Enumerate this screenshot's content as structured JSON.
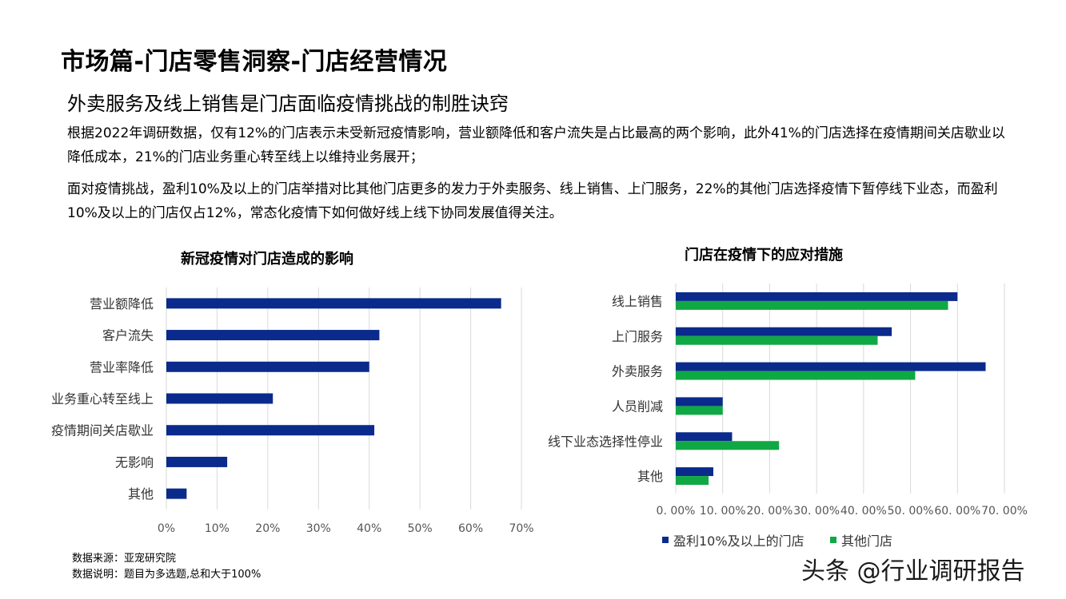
{
  "header": {
    "title": "市场篇-门店零售洞察-门店经营情况",
    "subtitle": "外卖服务及线上销售是门店面临疫情挑战的制胜诀窍"
  },
  "paragraphs": {
    "p1": "根据2022年调研数据，仅有12%的门店表示未受新冠疫情影响，营业额降低和客户流失是占比最高的两个影响，此外41%的门店选择在疫情期间关店歇业以降低成本，21%的门店业务重心转至线上以维持业务展开；",
    "p2": "面对疫情挑战，盈利10%及以上的门店举措对比其他门店更多的发力于外卖服务、线上销售、上门服务，22%的其他门店选择疫情下暂停线下业态，而盈利10%及以上的门店仅占12%，常态化疫情下如何做好线上线下协同发展值得关注。"
  },
  "footer": {
    "source": "数据来源：亚宠研究院",
    "note": "数据说明：题目为多选题,总和大于100%"
  },
  "watermark": "头条 @行业调研报告",
  "colors": {
    "dark_blue": "#0A2A8C",
    "green": "#10A844",
    "grid": "#d9d9d9",
    "axis_text": "#555555"
  },
  "chart_data": [
    {
      "type": "bar",
      "orientation": "horizontal",
      "title": "新冠疫情对门店造成的影响",
      "categories": [
        "营业额降低",
        "客户流失",
        "营业率降低",
        "业务重心转至线上",
        "疫情期间关店歇业",
        "无影响",
        "其他"
      ],
      "values": [
        66,
        42,
        40,
        21,
        41,
        12,
        4
      ],
      "xlim": [
        0,
        70
      ],
      "xticks": [
        "0%",
        "10%",
        "20%",
        "30%",
        "40%",
        "50%",
        "60%",
        "70%"
      ],
      "grid": true,
      "legend": "none"
    },
    {
      "type": "bar",
      "orientation": "horizontal",
      "title": "门店在疫情下的应对措施",
      "categories": [
        "线上销售",
        "上门服务",
        "外卖服务",
        "人员削减",
        "线下业态选择性停业",
        "其他"
      ],
      "series": [
        {
          "name": "盈利10%及以上的门店",
          "color": "#0A2A8C",
          "values": [
            60,
            46,
            66,
            10,
            12,
            8
          ]
        },
        {
          "name": "其他门店",
          "color": "#10A844",
          "values": [
            58,
            43,
            51,
            10,
            22,
            7
          ]
        }
      ],
      "xlim": [
        0,
        70
      ],
      "xticks": [
        "0. 00%",
        "10. 00%",
        "20. 00%",
        "30. 00%",
        "40. 00%",
        "50. 00%",
        "60. 00%",
        "70. 00%"
      ],
      "grid": true,
      "legend": "bottom"
    }
  ]
}
